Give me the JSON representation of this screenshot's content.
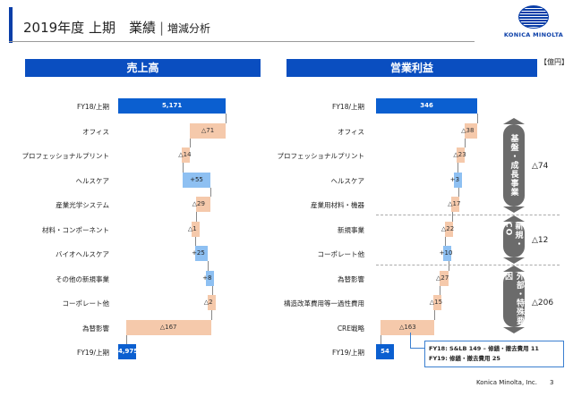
{
  "header": {
    "title_main": "2019年度 上期　業績",
    "title_sep": "|",
    "title_sub": "増減分析",
    "logo_text": "KONICA MINOLTA"
  },
  "unit_label": "【億円】",
  "sales": {
    "title": "売上高",
    "rows": [
      {
        "label": "FY18/上期",
        "value": "5,171",
        "kind": "total"
      },
      {
        "label": "オフィス",
        "value": "△71",
        "kind": "neg"
      },
      {
        "label": "プロフェッショナルプリント",
        "value": "△14",
        "kind": "neg"
      },
      {
        "label": "ヘルスケア",
        "value": "+55",
        "kind": "pos"
      },
      {
        "label": "産業光学システム",
        "value": "△29",
        "kind": "neg"
      },
      {
        "label": "材料・コンポーネント",
        "value": "△1",
        "kind": "neg"
      },
      {
        "label": "バイオヘルスケア",
        "value": "+25",
        "kind": "pos"
      },
      {
        "label": "その他の新規事業",
        "value": "+8",
        "kind": "pos"
      },
      {
        "label": "コーポレート他",
        "value": "△2",
        "kind": "neg"
      },
      {
        "label": "為替影響",
        "value": "△167",
        "kind": "neg"
      },
      {
        "label": "FY19/上期",
        "value": "4,975",
        "kind": "total"
      }
    ]
  },
  "op_income": {
    "title": "営業利益",
    "rows": [
      {
        "label": "FY18/上期",
        "value": "346",
        "kind": "total"
      },
      {
        "label": "オフィス",
        "value": "△38",
        "kind": "neg"
      },
      {
        "label": "プロフェッショナルプリント",
        "value": "△23",
        "kind": "neg"
      },
      {
        "label": "ヘルスケア",
        "value": "+3",
        "kind": "pos"
      },
      {
        "label": "産業用材料・機器",
        "value": "△17",
        "kind": "neg"
      },
      {
        "label": "新規事業",
        "value": "△22",
        "kind": "neg"
      },
      {
        "label": "コーポレート他",
        "value": "+10",
        "kind": "pos"
      },
      {
        "label": "為替影響",
        "value": "△27",
        "kind": "neg"
      },
      {
        "label": "構造改革費用等一過性費用",
        "value": "△15",
        "kind": "neg"
      },
      {
        "label": "CRE戦略",
        "value": "△163",
        "kind": "neg"
      },
      {
        "label": "FY19/上期",
        "value": "54",
        "kind": "total"
      }
    ],
    "groups": [
      {
        "label": "基盤・成長事業",
        "value": "△74"
      },
      {
        "label": "新規・CO",
        "value": "△12"
      },
      {
        "label": "外部・特殊要因",
        "value": "△206"
      }
    ],
    "note": {
      "line1": "FY18: S&LB 149 – 修繕・撤去費用 11",
      "line2": "FY19: 修繕・撤去費用  25"
    }
  },
  "footer": {
    "company": "Konica Minolta, Inc.",
    "page": "3"
  },
  "colors": {
    "header_blue": "#0a4ec0",
    "total_bar": "#0b5fd0",
    "increase_bar": "#8ec0f2",
    "decrease_bar": "#f5c9ab",
    "group_pill": "#6b6b6b"
  }
}
